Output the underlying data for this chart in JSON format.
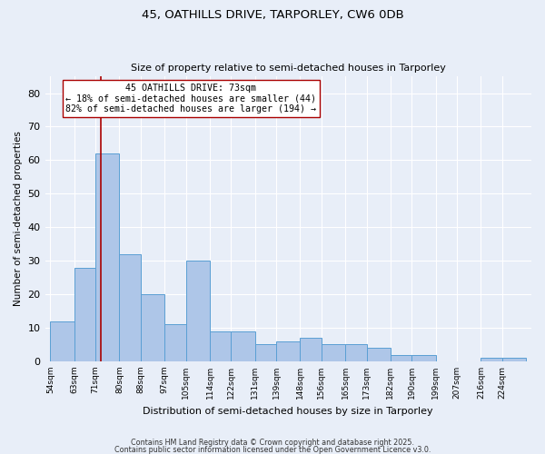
{
  "title_line1": "45, OATHILLS DRIVE, TARPORLEY, CW6 0DB",
  "title_line2": "Size of property relative to semi-detached houses in Tarporley",
  "xlabel": "Distribution of semi-detached houses by size in Tarporley",
  "ylabel": "Number of semi-detached properties",
  "bin_labels": [
    "54sqm",
    "63sqm",
    "71sqm",
    "80sqm",
    "88sqm",
    "97sqm",
    "105sqm",
    "114sqm",
    "122sqm",
    "131sqm",
    "139sqm",
    "148sqm",
    "156sqm",
    "165sqm",
    "173sqm",
    "182sqm",
    "190sqm",
    "199sqm",
    "207sqm",
    "216sqm",
    "224sqm"
  ],
  "bar_heights": [
    12,
    28,
    62,
    32,
    20,
    11,
    30,
    9,
    9,
    5,
    6,
    7,
    5,
    5,
    4,
    2,
    2,
    0,
    0,
    1,
    1
  ],
  "bar_color": "#aec6e8",
  "bar_edgecolor": "#5a9fd4",
  "vline_x": 73,
  "vline_color": "#aa0000",
  "annotation_title": "45 OATHILLS DRIVE: 73sqm",
  "annotation_line2": "← 18% of semi-detached houses are smaller (44)",
  "annotation_line3": "82% of semi-detached houses are larger (194) →",
  "annotation_box_color": "#ffffff",
  "annotation_box_edgecolor": "#aa0000",
  "ylim": [
    0,
    85
  ],
  "yticks": [
    0,
    10,
    20,
    30,
    40,
    50,
    60,
    70,
    80
  ],
  "bin_edges": [
    54,
    63,
    71,
    80,
    88,
    97,
    105,
    114,
    122,
    131,
    139,
    148,
    156,
    165,
    173,
    182,
    190,
    199,
    207,
    216,
    224,
    233
  ],
  "background_color": "#e8eef8",
  "footer_line1": "Contains HM Land Registry data © Crown copyright and database right 2025.",
  "footer_line2": "Contains public sector information licensed under the Open Government Licence v3.0."
}
